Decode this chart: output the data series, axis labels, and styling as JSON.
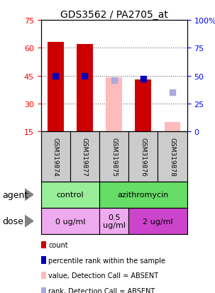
{
  "title": "GDS3562 / PA2705_at",
  "samples": [
    "GSM319874",
    "GSM319877",
    "GSM319875",
    "GSM319876",
    "GSM319878"
  ],
  "bar_values": [
    63,
    62,
    44,
    43,
    20
  ],
  "bar_colors": [
    "#cc0000",
    "#cc0000",
    "#ffbbbb",
    "#cc0000",
    "#ffbbbb"
  ],
  "rank_values": [
    50,
    50,
    46,
    47,
    35
  ],
  "rank_colors": [
    "#0000bb",
    "#0000bb",
    "#aaaadd",
    "#0000bb",
    "#aaaadd"
  ],
  "rank_is_absent": [
    false,
    false,
    true,
    false,
    true
  ],
  "ylim_left": [
    15,
    75
  ],
  "ylim_right": [
    0,
    100
  ],
  "yticks_left": [
    15,
    30,
    45,
    60,
    75
  ],
  "yticks_right": [
    0,
    25,
    50,
    75,
    100
  ],
  "agent_row": [
    {
      "label": "control",
      "span": [
        0,
        2
      ],
      "color": "#99ee99"
    },
    {
      "label": "azithromycin",
      "span": [
        2,
        5
      ],
      "color": "#66dd66"
    }
  ],
  "dose_row": [
    {
      "label": "0 ug/ml",
      "span": [
        0,
        2
      ],
      "color": "#eeaaee"
    },
    {
      "label": "0.5\nug/ml",
      "span": [
        2,
        3
      ],
      "color": "#eeaaee"
    },
    {
      "label": "2 ug/ml",
      "span": [
        3,
        5
      ],
      "color": "#cc44cc"
    }
  ],
  "legend_items": [
    {
      "color": "#cc0000",
      "label": "count"
    },
    {
      "color": "#0000bb",
      "label": "percentile rank within the sample"
    },
    {
      "color": "#ffbbbb",
      "label": "value, Detection Call = ABSENT"
    },
    {
      "color": "#aaaadd",
      "label": "rank, Detection Call = ABSENT"
    }
  ],
  "bar_width": 0.55,
  "rank_marker_size": 6,
  "grid_color": "#666666",
  "sample_box_color": "#cccccc",
  "bar_base": 15
}
